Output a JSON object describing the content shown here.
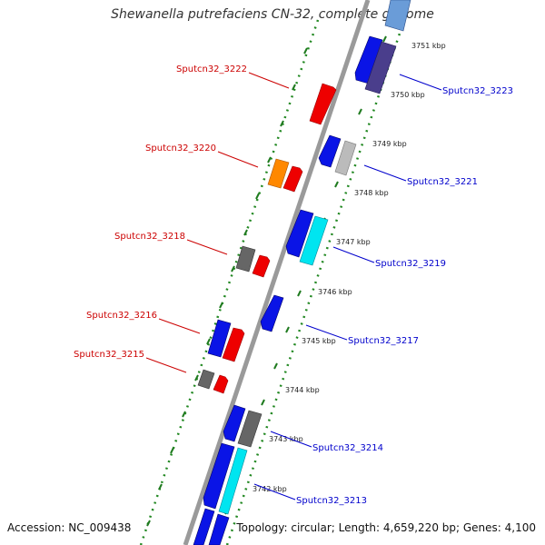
{
  "title": "Shewanella putrefaciens CN-32, complete genome",
  "accession": "Accession: NC_009438",
  "topology": "Topology: circular; Length: 4,659,220 bp; Genes: 4,100",
  "colors": {
    "forward_label": "#cc0000",
    "reverse_label": "#0000cc",
    "backbone": "#888888",
    "dotted_ring": "#228822",
    "blue": "#0a14e6",
    "red": "#ee0000",
    "orange": "#ff8800",
    "gray": "#666666",
    "lightgray": "#bbbbbb",
    "cyan": "#00e5f0",
    "navy": "#4a3e8c",
    "lightblue": "#6a9cd8"
  },
  "ticks": [
    "3751 kbp",
    "3750 kbp",
    "3749 kbp",
    "3748 kbp",
    "3747 kbp",
    "3746 kbp",
    "3745 kbp",
    "3744 kbp",
    "3743 kbp",
    "3742 kbp"
  ],
  "gene_labels": [
    {
      "name": "Sputcn32_3222",
      "strand": "forward"
    },
    {
      "name": "Sputcn32_3220",
      "strand": "forward"
    },
    {
      "name": "Sputcn32_3218",
      "strand": "forward"
    },
    {
      "name": "Sputcn32_3216",
      "strand": "forward"
    },
    {
      "name": "Sputcn32_3215",
      "strand": "forward"
    },
    {
      "name": "Sputcn32_3223",
      "strand": "reverse"
    },
    {
      "name": "Sputcn32_3221",
      "strand": "reverse"
    },
    {
      "name": "Sputcn32_3219",
      "strand": "reverse"
    },
    {
      "name": "Sputcn32_3217",
      "strand": "reverse"
    },
    {
      "name": "Sputcn32_3214",
      "strand": "reverse"
    },
    {
      "name": "Sputcn32_3213",
      "strand": "reverse"
    }
  ]
}
